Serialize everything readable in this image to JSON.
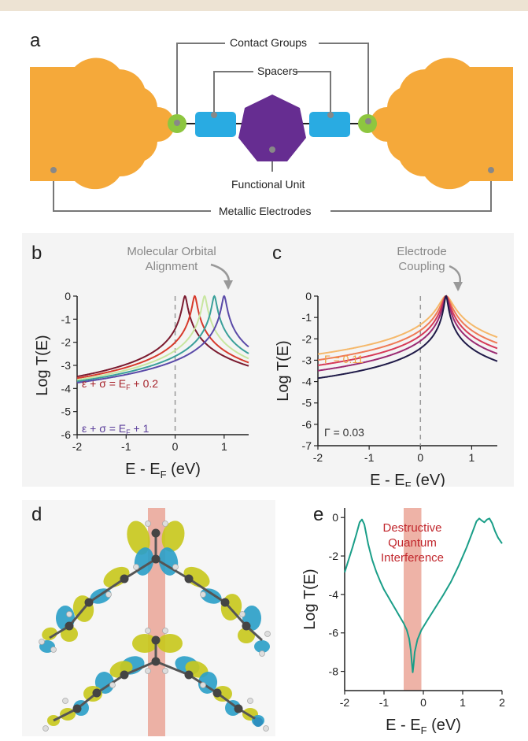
{
  "colors": {
    "electrode": "#f5a93a",
    "contact": "#8dc63f",
    "spacer": "#29abe2",
    "functional": "#662d91",
    "wire": "#777777",
    "teal_curve": "#1a9e88",
    "dqi_band": "#e8998a",
    "dqi_text": "#c1272d",
    "lobe_yellow": "#c8c81e",
    "lobe_blue": "#2d9fc8"
  },
  "panel_a": {
    "label": "a",
    "contact_groups": "Contact Groups",
    "spacers": "Spacers",
    "functional_unit": "Functional Unit",
    "metallic_electrodes": "Metallic Electrodes"
  },
  "panel_b": {
    "label": "b",
    "annotation_line1": "Molecular Orbital",
    "annotation_line2": "Alignment",
    "upper_label": "ε + σ = E",
    "upper_sub": "F",
    "upper_suffix": " + 0.2",
    "lower_label": "ε + σ = E",
    "lower_sub": "F",
    "lower_suffix": " + 1"
  },
  "panel_c": {
    "label": "c",
    "annotation_line1": "Electrode",
    "annotation_line2": "Coupling",
    "upper_label": "Γ = 0.11",
    "lower_label": "Γ = 0.03"
  },
  "panel_d": {
    "label": "d"
  },
  "panel_e": {
    "label": "e",
    "annotation_line1": "Destructive",
    "annotation_line2": "Quantum",
    "annotation_line3": "Interference"
  },
  "chart_data": [
    {
      "panel": "b",
      "type": "line",
      "xlabel": "E - E",
      "xlabel_sub": "F",
      "xlabel_suffix": " (eV)",
      "ylabel": "Log T(E)",
      "xlim": [
        -2,
        1.5
      ],
      "ylim": [
        -6,
        0
      ],
      "xticks": [
        "-2",
        "-1",
        "0",
        "1"
      ],
      "xtick_values": [
        -2,
        -1,
        0,
        1
      ],
      "yticks": [
        "0",
        "-1",
        "-2",
        "-3",
        "-4",
        "-5",
        "-6"
      ],
      "ytick_values": [
        0,
        -1,
        -2,
        -3,
        -4,
        -5,
        -6
      ],
      "reference_line_x": 0,
      "series": [
        {
          "resonance": 0.2,
          "gamma": 0.04,
          "color": "#7a1a2e"
        },
        {
          "resonance": 0.4,
          "gamma": 0.04,
          "color": "#d73a2c"
        },
        {
          "resonance": 0.6,
          "gamma": 0.04,
          "color": "#c8e6a0"
        },
        {
          "resonance": 0.8,
          "gamma": 0.04,
          "color": "#3aa09a"
        },
        {
          "resonance": 1.0,
          "gamma": 0.04,
          "color": "#5a4aa8"
        }
      ]
    },
    {
      "panel": "c",
      "type": "line",
      "xlabel": "E - E",
      "xlabel_sub": "F",
      "xlabel_suffix": " (eV)",
      "ylabel": "Log T(E)",
      "xlim": [
        -2,
        1.5
      ],
      "ylim": [
        -7,
        0
      ],
      "xticks": [
        "-2",
        "-1",
        "0",
        "1"
      ],
      "xtick_values": [
        -2,
        -1,
        0,
        1
      ],
      "yticks": [
        "0",
        "-1",
        "-2",
        "-3",
        "-4",
        "-5",
        "-6",
        "-7"
      ],
      "ytick_values": [
        0,
        -1,
        -2,
        -3,
        -4,
        -5,
        -6,
        -7
      ],
      "reference_line_x": 0,
      "series": [
        {
          "resonance": 0.5,
          "gamma": 0.11,
          "color": "#f5b86a"
        },
        {
          "resonance": 0.5,
          "gamma": 0.08,
          "color": "#ef7a55"
        },
        {
          "resonance": 0.5,
          "gamma": 0.06,
          "color": "#d63a58"
        },
        {
          "resonance": 0.5,
          "gamma": 0.045,
          "color": "#9a2a72"
        },
        {
          "resonance": 0.5,
          "gamma": 0.03,
          "color": "#1f1a48"
        }
      ]
    },
    {
      "panel": "e",
      "type": "line",
      "xlabel": "E - E",
      "xlabel_sub": "F",
      "xlabel_suffix": " (eV)",
      "ylabel": "Log T(E)",
      "xlim": [
        -2,
        2
      ],
      "ylim": [
        -9,
        0.5
      ],
      "xticks": [
        "-2",
        "-1",
        "0",
        "1",
        "2"
      ],
      "xtick_values": [
        -2,
        -1,
        0,
        1,
        2
      ],
      "yticks": [
        "0",
        "-2",
        "-4",
        "-6",
        "-8"
      ],
      "ytick_values": [
        0,
        -2,
        -4,
        -6,
        -8
      ],
      "shaded_band_x": [
        -0.5,
        -0.05
      ],
      "series": [
        {
          "color": "#1a9e88",
          "x": [
            -2.0,
            -1.9,
            -1.8,
            -1.7,
            -1.62,
            -1.56,
            -1.5,
            -1.4,
            -1.3,
            -1.2,
            -1.1,
            -1.0,
            -0.9,
            -0.8,
            -0.7,
            -0.6,
            -0.5,
            -0.42,
            -0.36,
            -0.32,
            -0.29,
            -0.27,
            -0.25,
            -0.22,
            -0.15,
            -0.05,
            0.1,
            0.3,
            0.5,
            0.7,
            0.9,
            1.1,
            1.25,
            1.35,
            1.42,
            1.48,
            1.55,
            1.62,
            1.68,
            1.75,
            1.82,
            1.9,
            2.0
          ],
          "y": [
            -2.85,
            -2.2,
            -1.55,
            -0.85,
            -0.25,
            -0.1,
            -0.35,
            -1.4,
            -2.2,
            -2.8,
            -3.3,
            -3.75,
            -4.1,
            -4.45,
            -4.8,
            -5.15,
            -5.5,
            -5.85,
            -6.3,
            -6.9,
            -7.6,
            -8.05,
            -7.7,
            -7.0,
            -6.35,
            -5.85,
            -5.35,
            -4.7,
            -4.05,
            -3.35,
            -2.5,
            -1.55,
            -0.75,
            -0.2,
            -0.05,
            -0.15,
            -0.25,
            -0.1,
            -0.05,
            -0.3,
            -0.7,
            -1.05,
            -1.35
          ]
        }
      ]
    }
  ]
}
